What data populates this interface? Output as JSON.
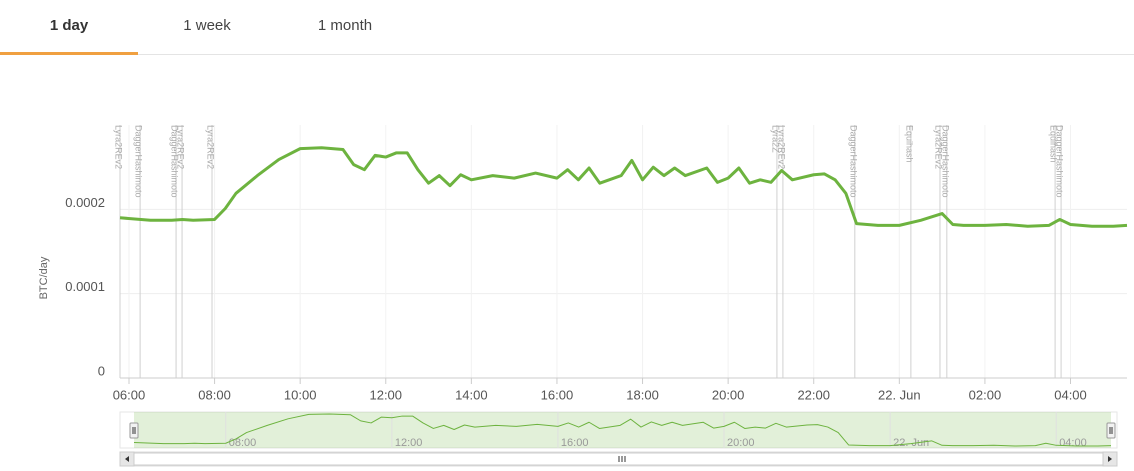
{
  "tabs": [
    "1 day",
    "1 week",
    "1 month"
  ],
  "chart_data": {
    "type": "line",
    "y_axis_title": "BTC/day",
    "xlim": [
      5.79,
      29.32
    ],
    "xticks": [
      {
        "value": 6,
        "label": "06:00"
      },
      {
        "value": 8,
        "label": "08:00"
      },
      {
        "value": 10,
        "label": "10:00"
      },
      {
        "value": 12,
        "label": "12:00"
      },
      {
        "value": 14,
        "label": "14:00"
      },
      {
        "value": 16,
        "label": "16:00"
      },
      {
        "value": 18,
        "label": "18:00"
      },
      {
        "value": 20,
        "label": "20:00"
      },
      {
        "value": 22,
        "label": "22:00"
      },
      {
        "value": 24,
        "label": "22. Jun"
      },
      {
        "value": 26,
        "label": "02:00"
      },
      {
        "value": 28,
        "label": "04:00"
      }
    ],
    "ylim": [
      0,
      0.0003
    ],
    "yticks": [
      0,
      0.0001,
      0.0002
    ],
    "grid": true,
    "x": [
      5.79,
      6.5,
      7.0,
      7.25,
      7.5,
      8.0,
      8.25,
      8.5,
      9.0,
      9.5,
      10.0,
      10.5,
      11.0,
      11.25,
      11.5,
      11.75,
      12.0,
      12.25,
      12.5,
      12.75,
      13.0,
      13.25,
      13.5,
      13.75,
      14.0,
      14.5,
      15.0,
      15.5,
      16.0,
      16.25,
      16.5,
      16.75,
      17.0,
      17.5,
      17.75,
      18.0,
      18.25,
      18.5,
      18.75,
      19.0,
      19.5,
      19.75,
      20.0,
      20.25,
      20.5,
      20.75,
      21.0,
      21.25,
      21.5,
      22.0,
      22.25,
      22.5,
      22.75,
      23.0,
      23.5,
      24.0,
      24.5,
      25.0,
      25.25,
      25.5,
      26.0,
      26.5,
      27.0,
      27.5,
      27.75,
      28.0,
      28.5,
      29.0,
      29.32
    ],
    "series": [
      {
        "color": "#6db33f",
        "values": [
          0.00019,
          0.000187,
          0.000187,
          0.000188,
          0.000187,
          0.000188,
          0.000201,
          0.000219,
          0.00024,
          0.000259,
          0.000272,
          0.000273,
          0.000271,
          0.000253,
          0.000247,
          0.000264,
          0.000262,
          0.000267,
          0.000267,
          0.000247,
          0.000231,
          0.00024,
          0.000228,
          0.000241,
          0.000235,
          0.00024,
          0.000237,
          0.000243,
          0.000237,
          0.000247,
          0.000235,
          0.000249,
          0.000231,
          0.00024,
          0.000258,
          0.000235,
          0.00025,
          0.00024,
          0.000249,
          0.00024,
          0.000249,
          0.000232,
          0.000237,
          0.000249,
          0.000231,
          0.000235,
          0.000232,
          0.000246,
          0.000235,
          0.000241,
          0.000242,
          0.000235,
          0.000219,
          0.000183,
          0.000181,
          0.000181,
          0.000187,
          0.000195,
          0.000182,
          0.000181,
          0.000181,
          0.000182,
          0.00018,
          0.000181,
          0.000188,
          0.000182,
          0.00018,
          0.00018,
          0.000181
        ]
      }
    ],
    "plot_lines": [
      {
        "x": 5.79,
        "label": "Lyra2REv2"
      },
      {
        "x": 6.26,
        "label": "DaggerHashimoto"
      },
      {
        "x": 7.1,
        "label": "DaggerHashimoto"
      },
      {
        "x": 7.24,
        "label": "Lyra2REv2"
      },
      {
        "x": 7.94,
        "label": "Lyra2REv2"
      },
      {
        "x": 21.14,
        "label": "Lyra2Z"
      },
      {
        "x": 21.28,
        "label": "Lyra2REv2"
      },
      {
        "x": 22.96,
        "label": "DaggerHashimoto"
      },
      {
        "x": 24.27,
        "label": "Equihash"
      },
      {
        "x": 24.95,
        "label": "Lyra2REv2"
      },
      {
        "x": 25.11,
        "label": "DaggerHashimoto"
      },
      {
        "x": 27.64,
        "label": "Equihash"
      },
      {
        "x": 27.78,
        "label": "DaggerHashimoto"
      }
    ]
  }
}
